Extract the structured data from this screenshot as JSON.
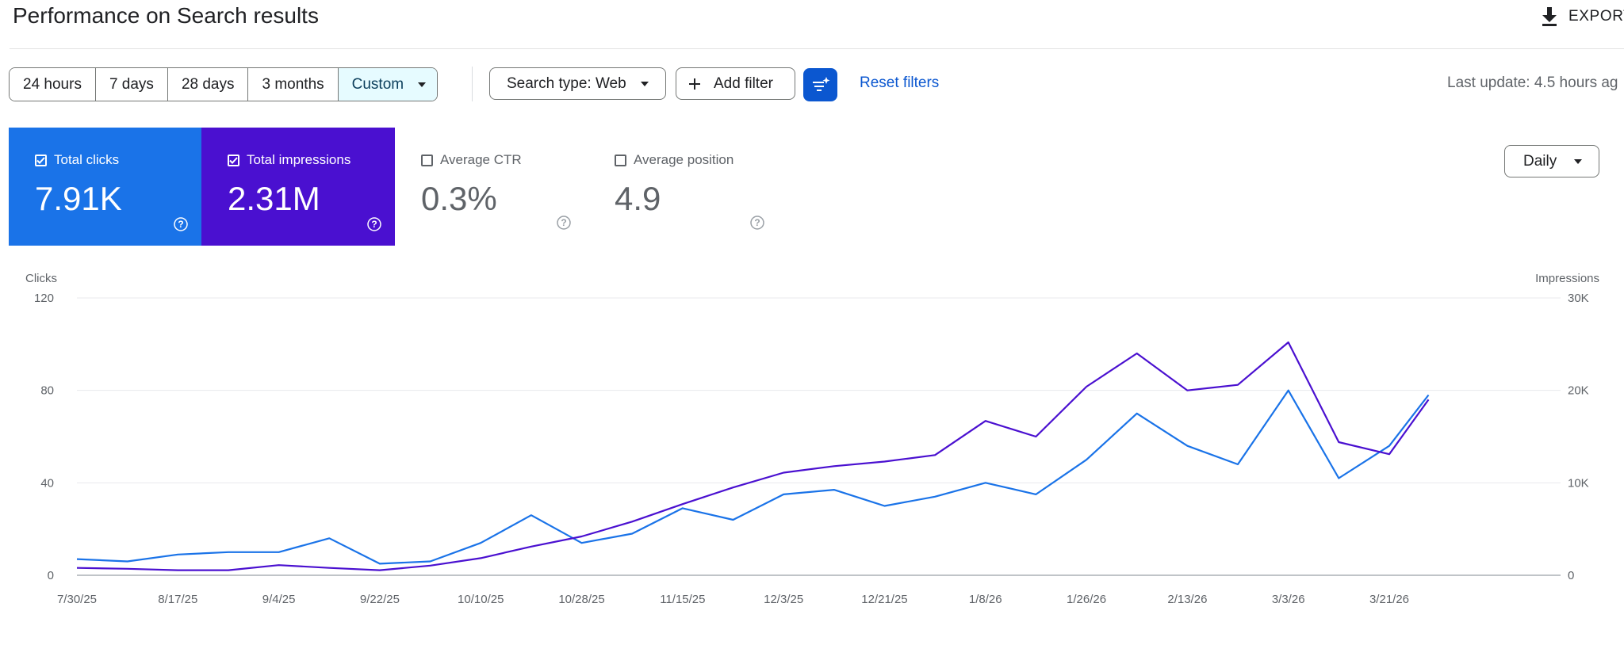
{
  "header": {
    "title": "Performance on Search results",
    "export_label": "EXPORT",
    "export_icon": "download-icon"
  },
  "toolbar": {
    "date_ranges": [
      {
        "label": "24 hours",
        "selected": false
      },
      {
        "label": "7 days",
        "selected": false
      },
      {
        "label": "28 days",
        "selected": false
      },
      {
        "label": "3 months",
        "selected": false
      },
      {
        "label": "Custom",
        "selected": true
      }
    ],
    "search_type_label": "Search type: Web",
    "add_filter_label": "Add filter",
    "reset_filters_label": "Reset filters",
    "last_update": "Last update: 4.5 hours ag"
  },
  "metrics": [
    {
      "label": "Total clicks",
      "value": "7.91K",
      "checked": true,
      "color": "#1a73e8"
    },
    {
      "label": "Total impressions",
      "value": "2.31M",
      "checked": true,
      "color": "#4a10d0"
    },
    {
      "label": "Average CTR",
      "value": "0.3%",
      "checked": false,
      "color": "#5f6368"
    },
    {
      "label": "Average position",
      "value": "4.9",
      "checked": false,
      "color": "#5f6368"
    }
  ],
  "granularity": "Daily",
  "colors": {
    "clicks": "#1a73e8",
    "impressions": "#4a10d0",
    "accent": "#0b57d0",
    "selected_segment_bg": "#e6fbff"
  },
  "chart_data": {
    "type": "line",
    "y_left_label": "Clicks",
    "y_right_label": "Impressions",
    "y_left_ticks": [
      "0",
      "40",
      "80",
      "120"
    ],
    "y_right_ticks": [
      "0",
      "10K",
      "20K",
      "30K"
    ],
    "y_left_lim": [
      0,
      120
    ],
    "y_right_lim": [
      0,
      30000
    ],
    "x_ticks": [
      "7/30/25",
      "8/17/25",
      "9/4/25",
      "9/22/25",
      "10/10/25",
      "10/28/25",
      "11/15/25",
      "12/3/25",
      "12/21/25",
      "1/8/26",
      "1/26/26",
      "2/13/26",
      "3/3/26",
      "3/21/26"
    ],
    "grid": "horizontal",
    "series": [
      {
        "name": "Total clicks",
        "axis": "left",
        "color": "#1a73e8",
        "x_dates": [
          "7/30/25",
          "8/8/25",
          "8/17/25",
          "8/26/25",
          "9/4/25",
          "9/13/25",
          "9/22/25",
          "10/1/25",
          "10/10/25",
          "10/19/25",
          "10/28/25",
          "11/6/25",
          "11/15/25",
          "11/24/25",
          "12/3/25",
          "12/12/25",
          "12/21/25",
          "12/30/25",
          "1/8/26",
          "1/17/26",
          "1/26/26",
          "2/4/26",
          "2/13/26",
          "2/22/26",
          "3/3/26",
          "3/12/26",
          "3/21/26",
          "3/28/26"
        ],
        "values": [
          7,
          6,
          9,
          10,
          10,
          16,
          5,
          6,
          14,
          26,
          14,
          18,
          29,
          24,
          35,
          37,
          30,
          34,
          40,
          35,
          50,
          70,
          56,
          48,
          80,
          42,
          56,
          78
        ]
      },
      {
        "name": "Total impressions",
        "axis": "right",
        "color": "#4a10d0",
        "x_dates": [
          "7/30/25",
          "8/8/25",
          "8/17/25",
          "8/26/25",
          "9/4/25",
          "9/13/25",
          "9/22/25",
          "10/1/25",
          "10/10/25",
          "10/19/25",
          "10/28/25",
          "11/6/25",
          "11/15/25",
          "11/24/25",
          "12/3/25",
          "12/12/25",
          "12/21/25",
          "12/30/25",
          "1/8/26",
          "1/17/26",
          "1/26/26",
          "2/4/26",
          "2/13/26",
          "2/22/26",
          "3/3/26",
          "3/12/26",
          "3/21/26",
          "3/28/26"
        ],
        "values": [
          800,
          700,
          550,
          550,
          1100,
          800,
          550,
          1050,
          1850,
          3100,
          4200,
          5800,
          7700,
          9500,
          11100,
          11800,
          12300,
          13000,
          16700,
          15000,
          20400,
          24000,
          20000,
          20600,
          25200,
          14400,
          13100,
          19000
        ]
      }
    ]
  }
}
